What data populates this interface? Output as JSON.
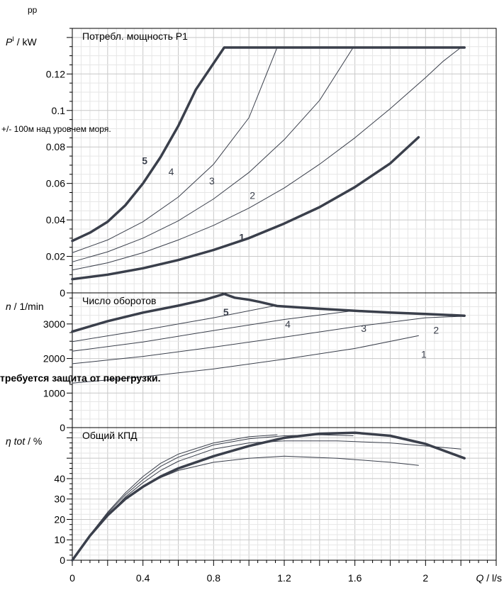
{
  "header": {
    "corner_label": "pp"
  },
  "notes": {
    "altitude": "+/- 100м над уровнем моря.",
    "warning": "требуется защита от перегрузки."
  },
  "chart_data": {
    "type": "line",
    "x_axis": {
      "label": "Q / l/s",
      "label_var": "Q",
      "label_unit": " / l/s",
      "range": [
        0,
        2.4
      ],
      "tick_values": [
        0,
        0.4,
        0.8,
        1.2,
        1.6,
        2
      ],
      "tick_labels": [
        "0",
        "0.4",
        "0.8",
        "1.2",
        "1.6",
        "2"
      ]
    },
    "panels": [
      {
        "id": "power",
        "title": "Потребл. мощность P1",
        "y_axis": {
          "label_var": "P",
          "label_sup": "I",
          "label_unit": " / kW",
          "range": [
            0,
            0.145
          ],
          "tick_values": [
            0,
            0.02,
            0.04,
            0.06,
            0.08,
            0.1,
            0.12
          ],
          "tick_labels": [
            "0",
            "0.02",
            "0.04",
            "0.06",
            "0.08",
            "0.1",
            "0.12"
          ]
        },
        "series": [
          {
            "name": "1",
            "bold": true,
            "label_at": [
              0.96,
              0.0305
            ],
            "x": [
              0,
              0.2,
              0.4,
              0.6,
              0.8,
              1.0,
              1.2,
              1.4,
              1.6,
              1.8,
              1.96
            ],
            "y": [
              0.0075,
              0.01,
              0.0135,
              0.018,
              0.0235,
              0.03,
              0.038,
              0.047,
              0.058,
              0.071,
              0.0853
            ]
          },
          {
            "name": "2",
            "bold": false,
            "label_at": [
              1.02,
              0.0535
            ],
            "x": [
              0,
              0.2,
              0.4,
              0.6,
              0.8,
              1.0,
              1.2,
              1.4,
              1.6,
              1.8,
              2.0,
              2.1,
              2.2
            ],
            "y": [
              0.0125,
              0.0165,
              0.022,
              0.029,
              0.037,
              0.0465,
              0.0575,
              0.0705,
              0.085,
              0.101,
              0.118,
              0.127,
              0.1345
            ]
          },
          {
            "name": "3",
            "bold": false,
            "label_at": [
              0.79,
              0.0615
            ],
            "x": [
              0,
              0.2,
              0.4,
              0.6,
              0.8,
              1.0,
              1.2,
              1.4,
              1.59
            ],
            "y": [
              0.017,
              0.0225,
              0.03,
              0.0395,
              0.0515,
              0.066,
              0.084,
              0.1055,
              0.1345
            ]
          },
          {
            "name": "4",
            "bold": false,
            "label_at": [
              0.56,
              0.0665
            ],
            "x": [
              0,
              0.2,
              0.4,
              0.6,
              0.8,
              1.0,
              1.16
            ],
            "y": [
              0.022,
              0.029,
              0.039,
              0.0525,
              0.0705,
              0.096,
              0.1345
            ]
          },
          {
            "name": "5",
            "bold": true,
            "label_at": [
              0.41,
              0.0725
            ],
            "x": [
              0,
              0.1,
              0.2,
              0.3,
              0.4,
              0.5,
              0.6,
              0.7,
              0.86,
              1.2,
              1.6,
              2.0,
              2.22
            ],
            "y": [
              0.0285,
              0.033,
              0.039,
              0.048,
              0.06,
              0.0745,
              0.0915,
              0.1115,
              0.1345,
              0.1345,
              0.1345,
              0.1345,
              0.1345
            ]
          }
        ]
      },
      {
        "id": "speed",
        "title": "Число оборотов",
        "y_axis": {
          "label_var": "n",
          "label_sup": "",
          "label_unit": " / 1/min",
          "range": [
            0,
            3900
          ],
          "tick_values": [
            0,
            1000,
            2000,
            3000
          ],
          "tick_labels": [
            "0",
            "1000",
            "2000",
            "3000"
          ]
        },
        "series": [
          {
            "name": "1",
            "bold": false,
            "label_at": [
              1.99,
              2120
            ],
            "x": [
              0,
              0.4,
              0.8,
              1.2,
              1.6,
              1.96
            ],
            "y": [
              1290,
              1470,
              1700,
              1980,
              2290,
              2660
            ]
          },
          {
            "name": "2",
            "bold": false,
            "label_at": [
              2.06,
              2820
            ],
            "x": [
              0,
              0.4,
              0.8,
              1.2,
              1.6,
              2.0,
              2.2
            ],
            "y": [
              1850,
              2060,
              2330,
              2620,
              2920,
              3180,
              3220
            ]
          },
          {
            "name": "3",
            "bold": false,
            "label_at": [
              1.65,
              2870
            ],
            "x": [
              0,
              0.4,
              0.8,
              1.2,
              1.59
            ],
            "y": [
              2210,
              2480,
              2810,
              3130,
              3380
            ]
          },
          {
            "name": "4",
            "bold": false,
            "label_at": [
              1.22,
              3000
            ],
            "x": [
              0,
              0.4,
              0.8,
              1.16
            ],
            "y": [
              2490,
              2820,
              3180,
              3540
            ]
          },
          {
            "name": "5",
            "bold": true,
            "label_at": [
              0.87,
              3350
            ],
            "x": [
              0,
              0.2,
              0.4,
              0.6,
              0.75,
              0.86,
              0.92,
              1.0,
              1.06,
              1.16,
              1.4,
              1.6,
              1.8,
              2.0,
              2.22
            ],
            "y": [
              2780,
              3080,
              3330,
              3530,
              3700,
              3870,
              3760,
              3700,
              3640,
              3520,
              3440,
              3380,
              3330,
              3290,
              3240
            ]
          }
        ]
      },
      {
        "id": "efficiency",
        "title": "Общий КПД",
        "y_axis": {
          "label_var": "η tot",
          "label_sup": "",
          "label_unit": " / %",
          "range": [
            0,
            65
          ],
          "tick_values": [
            0,
            10,
            20,
            30,
            40
          ],
          "tick_labels": [
            "0",
            "10",
            "20",
            "30",
            "40"
          ]
        },
        "series": [
          {
            "name": "1",
            "bold": false,
            "x": [
              0,
              0.1,
              0.2,
              0.3,
              0.4,
              0.5,
              0.6,
              0.8,
              1.0,
              1.2,
              1.5,
              1.8,
              1.96
            ],
            "y": [
              0,
              12,
              22,
              30,
              36,
              40.5,
              44,
              48,
              50,
              51,
              50,
              48,
              46.5
            ]
          },
          {
            "name": "2",
            "bold": false,
            "x": [
              0,
              0.1,
              0.2,
              0.3,
              0.4,
              0.5,
              0.6,
              0.8,
              1.0,
              1.2,
              1.5,
              1.8,
              2.0,
              2.2
            ],
            "y": [
              0,
              12,
              22,
              31,
              38,
              44,
              48.5,
              54.5,
              57.5,
              58.5,
              58.5,
              57.5,
              56,
              54.5
            ]
          },
          {
            "name": "3",
            "bold": false,
            "x": [
              0,
              0.1,
              0.2,
              0.3,
              0.4,
              0.5,
              0.6,
              0.8,
              1.0,
              1.2,
              1.4,
              1.59
            ],
            "y": [
              0,
              12,
              23,
              32,
              39.5,
              46,
              50.5,
              56.5,
              59.5,
              61,
              61.5,
              61
            ]
          },
          {
            "name": "4",
            "bold": false,
            "x": [
              0,
              0.1,
              0.2,
              0.3,
              0.4,
              0.5,
              0.6,
              0.8,
              1.0,
              1.16
            ],
            "y": [
              0,
              12.5,
              23.5,
              33,
              41,
              47.5,
              52,
              57.5,
              60.5,
              61.5
            ]
          },
          {
            "name": "5",
            "bold": true,
            "x": [
              0,
              0.1,
              0.2,
              0.3,
              0.4,
              0.5,
              0.6,
              0.8,
              1.0,
              1.2,
              1.4,
              1.6,
              1.8,
              2.0,
              2.22
            ],
            "y": [
              0,
              12,
              22,
              30,
              36,
              41,
              45,
              51,
              56,
              60,
              62,
              62.5,
              61,
              57,
              50
            ]
          }
        ]
      }
    ],
    "grid": true,
    "colors": {
      "bold": "#3a3f4b",
      "thin": "#3a3f4b",
      "grid_major": "#c8c8c8",
      "grid_minor": "#e6e6e6"
    }
  }
}
